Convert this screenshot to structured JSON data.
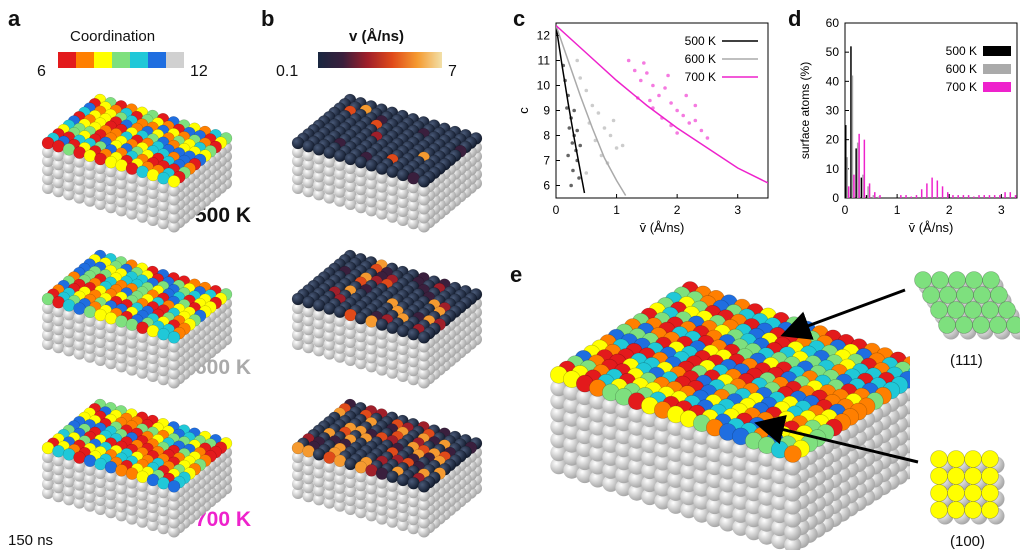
{
  "panels": {
    "a": "a",
    "b": "b",
    "c": "c",
    "d": "d",
    "e": "e"
  },
  "colors": {
    "t500": "#000000",
    "t600": "#aaaaaa",
    "t700": "#ee22cc",
    "coord6": "#e31a1c",
    "coord7": "#ff7f00",
    "coord8": "#ffff00",
    "coord9": "#7ee07e",
    "coord10": "#20c8d8",
    "coord11": "#1f6ee0",
    "coord12": "#d0d0d0",
    "bulk": "#d8d8d8"
  },
  "coordination_legend": {
    "title": "Coordination",
    "min": "6",
    "max": "12"
  },
  "velocity_legend": {
    "title": "v (Å/ns)",
    "min": "0.1",
    "max": "7"
  },
  "temperatures": {
    "t500": "500 K",
    "t600": "600 K",
    "t700": "700 K"
  },
  "time_label": "150 ns",
  "facets": {
    "f111": "(111)",
    "f100": "(100)"
  },
  "chart_data": [
    {
      "type": "scatter",
      "panel": "c",
      "xlabel": "v̄ (Å/ns)",
      "ylabel": "c̄",
      "xlim": [
        0,
        3.5
      ],
      "ylim": [
        5.5,
        12.5
      ],
      "xticks": [
        "0",
        "1",
        "2",
        "3"
      ],
      "yticks": [
        "6",
        "7",
        "8",
        "9",
        "10",
        "11",
        "12"
      ],
      "legend": "top-right",
      "series": [
        {
          "name": "500 K",
          "color": "#000000",
          "curve": [
            [
              0.0,
              12.4
            ],
            [
              0.1,
              10.8
            ],
            [
              0.2,
              9.3
            ],
            [
              0.3,
              7.9
            ],
            [
              0.4,
              6.6
            ],
            [
              0.47,
              5.7
            ]
          ],
          "points": [
            [
              0.15,
              10.2
            ],
            [
              0.2,
              9.6
            ],
            [
              0.18,
              9.1
            ],
            [
              0.25,
              8.7
            ],
            [
              0.22,
              8.3
            ],
            [
              0.3,
              8.0
            ],
            [
              0.27,
              7.7
            ],
            [
              0.33,
              7.4
            ],
            [
              0.2,
              7.2
            ],
            [
              0.35,
              7.0
            ],
            [
              0.28,
              6.6
            ],
            [
              0.38,
              6.3
            ],
            [
              0.25,
              6.0
            ],
            [
              0.12,
              10.8
            ],
            [
              0.3,
              9.0
            ],
            [
              0.35,
              8.2
            ],
            [
              0.4,
              7.6
            ]
          ]
        },
        {
          "name": "600 K",
          "color": "#aaaaaa",
          "curve": [
            [
              0.0,
              12.4
            ],
            [
              0.2,
              11.0
            ],
            [
              0.4,
              9.6
            ],
            [
              0.6,
              8.3
            ],
            [
              0.8,
              7.1
            ],
            [
              1.0,
              6.2
            ],
            [
              1.15,
              5.6
            ]
          ],
          "points": [
            [
              0.4,
              10.3
            ],
            [
              0.5,
              9.8
            ],
            [
              0.6,
              9.2
            ],
            [
              0.7,
              8.9
            ],
            [
              0.55,
              8.5
            ],
            [
              0.8,
              8.3
            ],
            [
              0.9,
              8.0
            ],
            [
              0.65,
              7.8
            ],
            [
              1.0,
              7.5
            ],
            [
              0.75,
              7.2
            ],
            [
              1.1,
              7.6
            ],
            [
              0.85,
              6.9
            ],
            [
              0.5,
              6.5
            ],
            [
              0.95,
              8.6
            ],
            [
              0.35,
              11.0
            ]
          ]
        },
        {
          "name": "700 K",
          "color": "#ee22cc",
          "curve": [
            [
              0.0,
              12.4
            ],
            [
              0.5,
              11.3
            ],
            [
              1.0,
              10.2
            ],
            [
              1.5,
              9.2
            ],
            [
              2.0,
              8.3
            ],
            [
              2.5,
              7.5
            ],
            [
              3.0,
              6.7
            ],
            [
              3.5,
              6.1
            ]
          ],
          "points": [
            [
              1.2,
              11.0
            ],
            [
              1.3,
              10.6
            ],
            [
              1.4,
              10.2
            ],
            [
              1.5,
              10.5
            ],
            [
              1.6,
              10.0
            ],
            [
              1.7,
              9.6
            ],
            [
              1.8,
              9.9
            ],
            [
              1.9,
              9.3
            ],
            [
              2.0,
              9.0
            ],
            [
              2.1,
              8.8
            ],
            [
              2.2,
              8.5
            ],
            [
              2.3,
              8.6
            ],
            [
              2.4,
              8.2
            ],
            [
              1.6,
              9.1
            ],
            [
              1.75,
              8.7
            ],
            [
              1.9,
              8.4
            ],
            [
              2.0,
              8.1
            ],
            [
              2.5,
              7.9
            ],
            [
              1.35,
              9.5
            ],
            [
              1.55,
              9.4
            ],
            [
              2.15,
              9.6
            ],
            [
              1.85,
              10.4
            ],
            [
              2.3,
              9.2
            ],
            [
              1.45,
              10.9
            ]
          ]
        }
      ]
    },
    {
      "type": "bar",
      "panel": "d",
      "xlabel": "v̄ (Å/ns)",
      "ylabel": "surface atoms (%)",
      "xlim": [
        0,
        3.3
      ],
      "ylim": [
        0,
        60
      ],
      "xticks": [
        "0",
        "1",
        "2",
        "3"
      ],
      "yticks": [
        "0",
        "10",
        "20",
        "30",
        "40",
        "50",
        "60"
      ],
      "legend": "top-right",
      "bin_width": 0.1,
      "series": [
        {
          "name": "500 K",
          "color": "#000000",
          "x": [
            0.0,
            0.1,
            0.2,
            0.3,
            0.4
          ],
          "values": [
            25,
            52,
            17,
            7,
            1
          ]
        },
        {
          "name": "600 K",
          "color": "#aaaaaa",
          "x": [
            0.0,
            0.1,
            0.2,
            0.3,
            0.4,
            0.5,
            0.6
          ],
          "values": [
            14,
            42,
            19,
            8,
            4,
            1,
            0.5
          ]
        },
        {
          "name": "700 K",
          "color": "#ee22cc",
          "x": [
            0.0,
            0.1,
            0.2,
            0.3,
            0.4,
            0.5,
            0.6,
            1.0,
            1.1,
            1.2,
            1.3,
            1.4,
            1.5,
            1.6,
            1.7,
            1.8,
            1.9,
            2.0,
            2.1,
            2.2,
            2.3,
            2.4,
            2.5,
            2.6,
            2.7,
            2.8,
            2.9,
            3.0,
            3.1,
            3.2
          ],
          "values": [
            4,
            8,
            22,
            20,
            5,
            2,
            1,
            1,
            1,
            0.5,
            1,
            3,
            5,
            7,
            6,
            4,
            2,
            1,
            1,
            1,
            1,
            0.5,
            1,
            1,
            1,
            1,
            1,
            2,
            2,
            1
          ]
        }
      ]
    }
  ]
}
